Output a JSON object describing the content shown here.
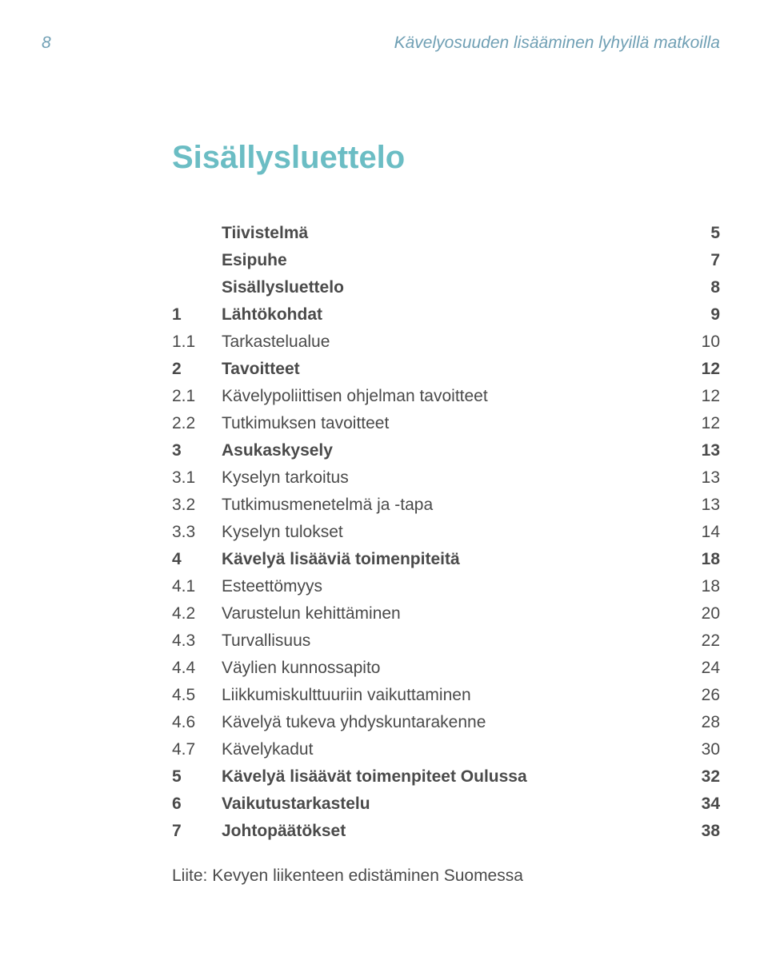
{
  "header": {
    "page_number": "8",
    "running_title": "Kävelyosuuden lisääminen lyhyillä matkoilla"
  },
  "title": "Sisällysluettelo",
  "toc": [
    {
      "num": "",
      "label": "Tiivistelmä",
      "page": "5",
      "bold": true
    },
    {
      "num": "",
      "label": "Esipuhe",
      "page": "7",
      "bold": true
    },
    {
      "num": "",
      "label": "Sisällysluettelo",
      "page": "8",
      "bold": true
    },
    {
      "num": "1",
      "label": "Lähtökohdat",
      "page": "9",
      "bold": true
    },
    {
      "num": "1.1",
      "label": "Tarkastelualue",
      "page": "10",
      "bold": false
    },
    {
      "num": "2",
      "label": "Tavoitteet",
      "page": "12",
      "bold": true
    },
    {
      "num": "2.1",
      "label": "Kävelypoliittisen ohjelman tavoitteet",
      "page": "12",
      "bold": false
    },
    {
      "num": "2.2",
      "label": "Tutkimuksen tavoitteet",
      "page": "12",
      "bold": false
    },
    {
      "num": "3",
      "label": "Asukaskysely",
      "page": "13",
      "bold": true
    },
    {
      "num": "3.1",
      "label": "Kyselyn tarkoitus",
      "page": "13",
      "bold": false
    },
    {
      "num": "3.2",
      "label": "Tutkimusmenetelmä ja -tapa",
      "page": "13",
      "bold": false
    },
    {
      "num": "3.3",
      "label": "Kyselyn tulokset",
      "page": "14",
      "bold": false
    },
    {
      "num": "4",
      "label": "Kävelyä lisääviä toimenpiteitä",
      "page": "18",
      "bold": true
    },
    {
      "num": "4.1",
      "label": "Esteettömyys",
      "page": "18",
      "bold": false
    },
    {
      "num": "4.2",
      "label": "Varustelun kehittäminen",
      "page": "20",
      "bold": false
    },
    {
      "num": "4.3",
      "label": "Turvallisuus",
      "page": "22",
      "bold": false
    },
    {
      "num": "4.4",
      "label": "Väylien kunnossapito",
      "page": "24",
      "bold": false
    },
    {
      "num": "4.5",
      "label": "Liikkumiskulttuuriin vaikuttaminen",
      "page": "26",
      "bold": false
    },
    {
      "num": "4.6",
      "label": "Kävelyä tukeva yhdyskuntarakenne",
      "page": "28",
      "bold": false
    },
    {
      "num": "4.7",
      "label": "Kävelykadut",
      "page": "30",
      "bold": false
    },
    {
      "num": "5",
      "label": "Kävelyä lisäävät toimenpiteet Oulussa",
      "page": "32",
      "bold": true
    },
    {
      "num": "6",
      "label": "Vaikutustarkastelu",
      "page": "34",
      "bold": true
    },
    {
      "num": "7",
      "label": "Johtopäätökset",
      "page": "38",
      "bold": true
    }
  ],
  "appendix": "Liite:  Kevyen liikenteen edistäminen Suomessa",
  "colors": {
    "header_text": "#6f9fb4",
    "title_text": "#6bbdc4",
    "body_text": "#4a4a4a",
    "background": "#ffffff"
  },
  "typography": {
    "header_fontsize_pt": 16,
    "title_fontsize_pt": 30,
    "body_fontsize_pt": 16
  }
}
